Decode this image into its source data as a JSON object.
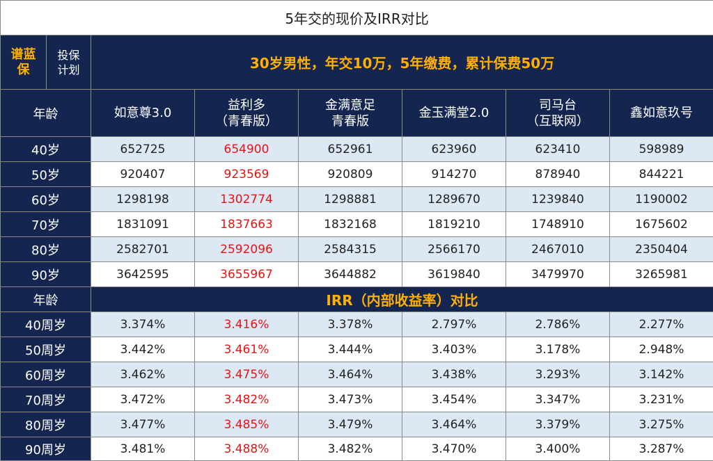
{
  "title": "5年交的现价及IRR对比",
  "brand_label": [
    "谱蓝",
    "保"
  ],
  "plan_label": [
    "投保",
    "计划"
  ],
  "summary": "30岁男性，年交10万，5年缴费，累计保费50万",
  "age_header": "年龄",
  "products": [
    [
      "如意尊3.0"
    ],
    [
      "益利多",
      "（青春版）"
    ],
    [
      "金满意足",
      "青春版"
    ],
    [
      "金玉满堂2.0"
    ],
    [
      "司马台",
      "（互联网）"
    ],
    [
      "鑫如意玖号"
    ]
  ],
  "highlight_color": "#e51414",
  "cash_value_rows": [
    {
      "age": "40岁",
      "values": [
        "652725",
        "654900",
        "652961",
        "623960",
        "623410",
        "598989"
      ]
    },
    {
      "age": "50岁",
      "values": [
        "920407",
        "923569",
        "920809",
        "914270",
        "878940",
        "844221"
      ]
    },
    {
      "age": "60岁",
      "values": [
        "1298198",
        "1302774",
        "1298881",
        "1289670",
        "1239840",
        "1190002"
      ]
    },
    {
      "age": "70岁",
      "values": [
        "1831091",
        "1837663",
        "1832168",
        "1819210",
        "1748910",
        "1675602"
      ]
    },
    {
      "age": "80岁",
      "values": [
        "2582701",
        "2592096",
        "2584315",
        "2566170",
        "2467010",
        "2350404"
      ]
    },
    {
      "age": "90岁",
      "values": [
        "3642595",
        "3655967",
        "3644882",
        "3619840",
        "3479970",
        "3265981"
      ]
    }
  ],
  "irr_section": {
    "age_header": "年龄",
    "title": "IRR（内部收益率）对比"
  },
  "irr_rows": [
    {
      "age": "40周岁",
      "values": [
        "3.374%",
        "3.416%",
        "3.378%",
        "2.797%",
        "2.786%",
        "2.277%"
      ]
    },
    {
      "age": "50周岁",
      "values": [
        "3.442%",
        "3.461%",
        "3.444%",
        "3.403%",
        "3.178%",
        "2.948%"
      ]
    },
    {
      "age": "60周岁",
      "values": [
        "3.462%",
        "3.475%",
        "3.464%",
        "3.438%",
        "3.293%",
        "3.142%"
      ]
    },
    {
      "age": "70周岁",
      "values": [
        "3.472%",
        "3.482%",
        "3.473%",
        "3.454%",
        "3.347%",
        "3.231%"
      ]
    },
    {
      "age": "80周岁",
      "values": [
        "3.477%",
        "3.485%",
        "3.479%",
        "3.464%",
        "3.379%",
        "3.275%"
      ]
    },
    {
      "age": "90周岁",
      "values": [
        "3.481%",
        "3.488%",
        "3.482%",
        "3.470%",
        "3.400%",
        "3.287%"
      ]
    }
  ]
}
